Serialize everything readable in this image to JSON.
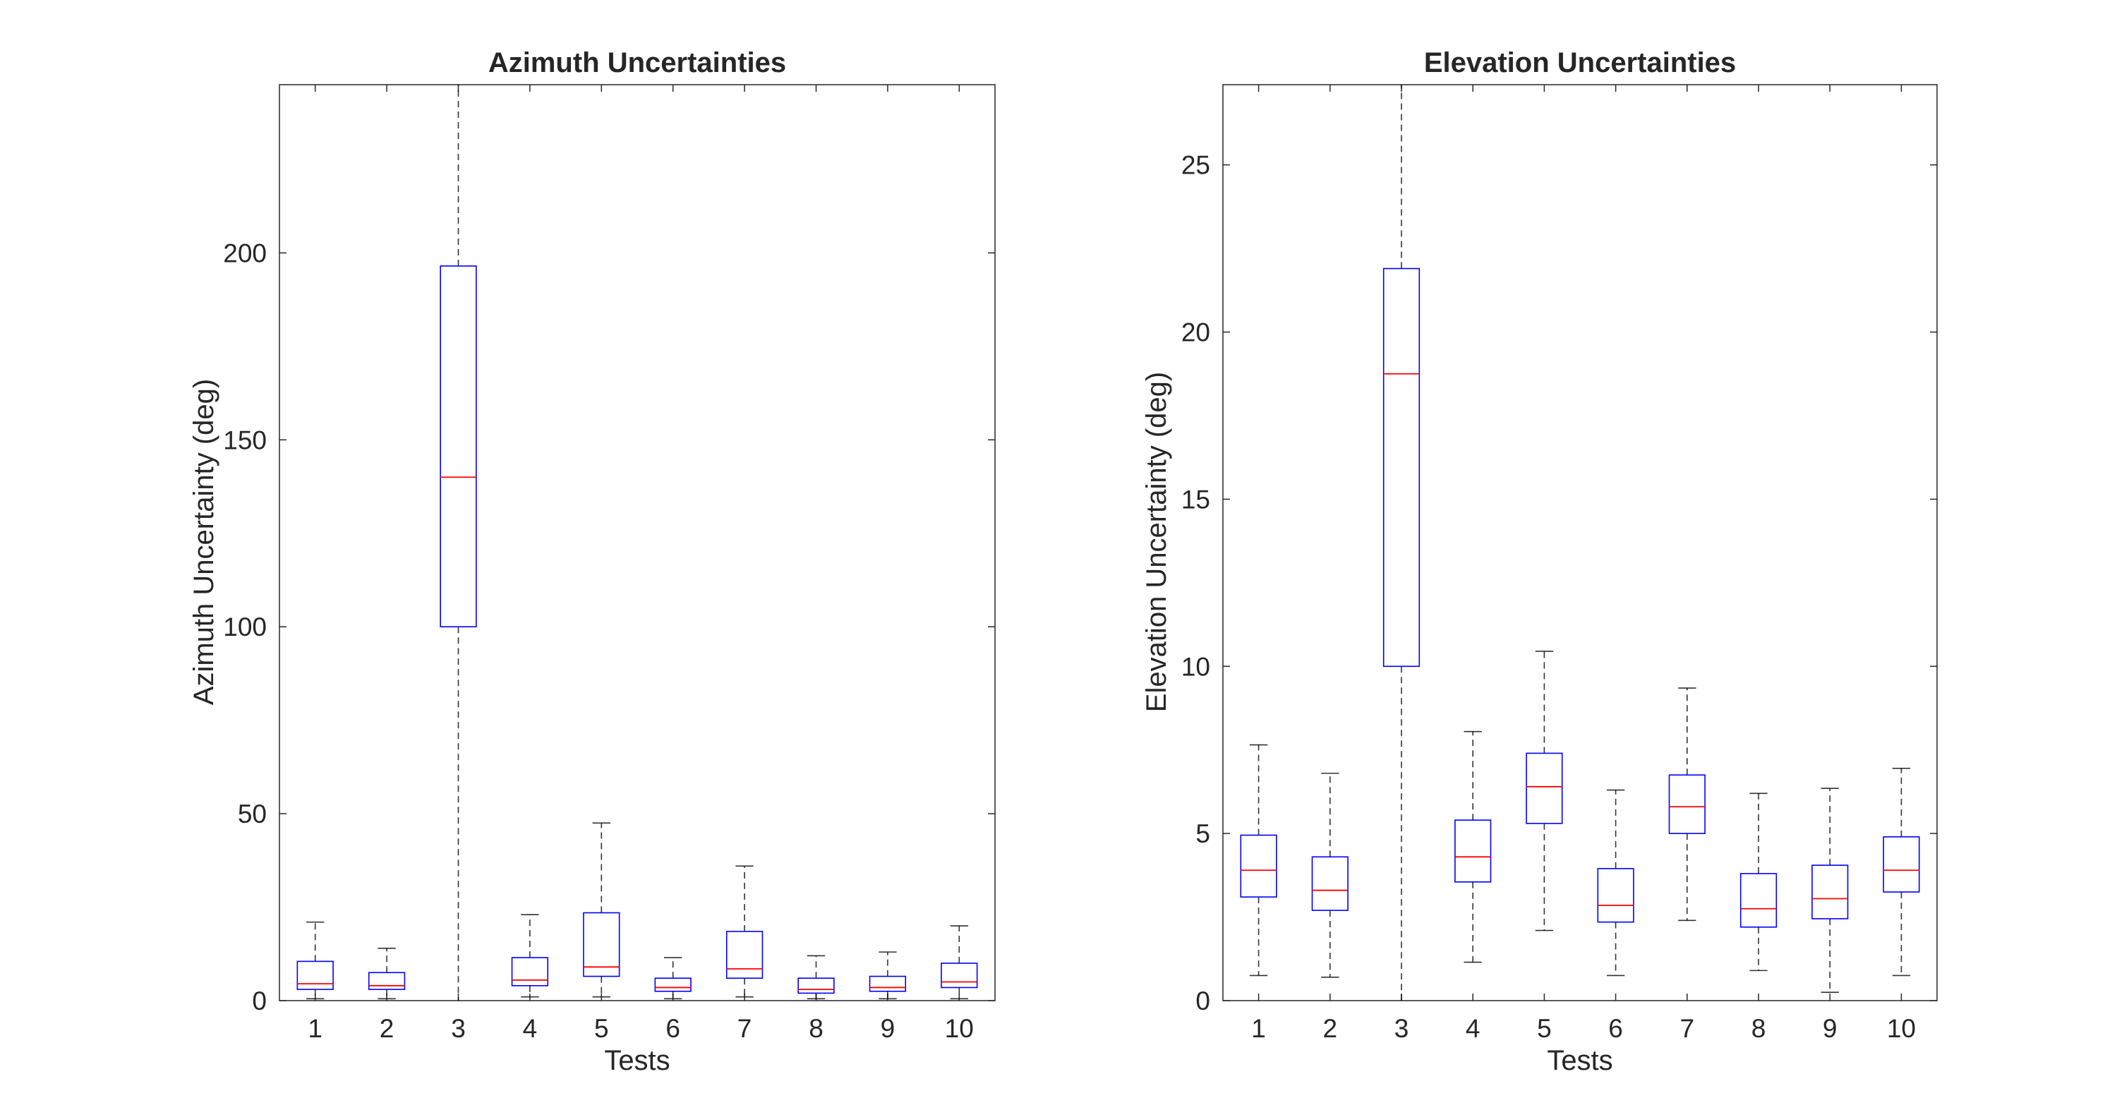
{
  "chart_data": [
    {
      "type": "box",
      "title": "Azimuth Uncertainties",
      "xlabel": "Tests",
      "ylabel": "Azimuth Uncertainty (deg)",
      "categories": [
        "1",
        "2",
        "3",
        "4",
        "5",
        "6",
        "7",
        "8",
        "9",
        "10"
      ],
      "ylim": [
        0,
        245
      ],
      "yticks": [
        0,
        50,
        100,
        150,
        200
      ],
      "ytick_labels": [
        "0",
        "50",
        "100",
        "150",
        "200"
      ],
      "boxes": [
        {
          "whisker_low": 0.5,
          "q1": 3.0,
          "median": 4.5,
          "q3": 10.5,
          "whisker_high": 21.0
        },
        {
          "whisker_low": 0.5,
          "q1": 3.0,
          "median": 4.0,
          "q3": 7.5,
          "whisker_high": 14.0
        },
        {
          "whisker_low": 0.0,
          "q1": 100.0,
          "median": 140.0,
          "q3": 196.5,
          "whisker_high": 245.0
        },
        {
          "whisker_low": 1.0,
          "q1": 4.0,
          "median": 5.5,
          "q3": 11.5,
          "whisker_high": 23.0
        },
        {
          "whisker_low": 1.0,
          "q1": 6.5,
          "median": 9.0,
          "q3": 23.5,
          "whisker_high": 47.5
        },
        {
          "whisker_low": 0.5,
          "q1": 2.5,
          "median": 3.5,
          "q3": 6.0,
          "whisker_high": 11.5
        },
        {
          "whisker_low": 1.0,
          "q1": 6.0,
          "median": 8.5,
          "q3": 18.5,
          "whisker_high": 36.0
        },
        {
          "whisker_low": 0.5,
          "q1": 2.0,
          "median": 3.0,
          "q3": 6.0,
          "whisker_high": 12.0
        },
        {
          "whisker_low": 0.5,
          "q1": 2.5,
          "median": 3.5,
          "q3": 6.5,
          "whisker_high": 13.0
        },
        {
          "whisker_low": 0.5,
          "q1": 3.5,
          "median": 5.0,
          "q3": 10.0,
          "whisker_high": 20.0
        }
      ],
      "colors": {
        "box": "#0000ff",
        "median": "#ff0000",
        "whisker": "#000000",
        "axes": "#262626"
      }
    },
    {
      "type": "box",
      "title": "Elevation Uncertainties",
      "xlabel": "Tests",
      "ylabel": "Elevation Uncertainty (deg)",
      "categories": [
        "1",
        "2",
        "3",
        "4",
        "5",
        "6",
        "7",
        "8",
        "9",
        "10"
      ],
      "ylim": [
        0,
        27.4
      ],
      "yticks": [
        0,
        5,
        10,
        15,
        20,
        25
      ],
      "ytick_labels": [
        "0",
        "5",
        "10",
        "15",
        "20",
        "25"
      ],
      "boxes": [
        {
          "whisker_low": 0.75,
          "q1": 3.1,
          "median": 3.9,
          "q3": 4.95,
          "whisker_high": 7.65
        },
        {
          "whisker_low": 0.7,
          "q1": 2.7,
          "median": 3.3,
          "q3": 4.3,
          "whisker_high": 6.8
        },
        {
          "whisker_low": 0.0,
          "q1": 10.0,
          "median": 18.75,
          "q3": 21.9,
          "whisker_high": 27.4
        },
        {
          "whisker_low": 1.15,
          "q1": 3.55,
          "median": 4.3,
          "q3": 5.4,
          "whisker_high": 8.05
        },
        {
          "whisker_low": 2.1,
          "q1": 5.3,
          "median": 6.4,
          "q3": 7.4,
          "whisker_high": 10.45
        },
        {
          "whisker_low": 0.75,
          "q1": 2.35,
          "median": 2.85,
          "q3": 3.95,
          "whisker_high": 6.3
        },
        {
          "whisker_low": 2.4,
          "q1": 5.0,
          "median": 5.8,
          "q3": 6.75,
          "whisker_high": 9.35
        },
        {
          "whisker_low": 0.9,
          "q1": 2.2,
          "median": 2.75,
          "q3": 3.8,
          "whisker_high": 6.2
        },
        {
          "whisker_low": 0.25,
          "q1": 2.45,
          "median": 3.05,
          "q3": 4.05,
          "whisker_high": 6.35
        },
        {
          "whisker_low": 0.75,
          "q1": 3.25,
          "median": 3.9,
          "q3": 4.9,
          "whisker_high": 6.95
        }
      ],
      "colors": {
        "box": "#0000ff",
        "median": "#ff0000",
        "whisker": "#000000",
        "axes": "#262626"
      }
    }
  ]
}
